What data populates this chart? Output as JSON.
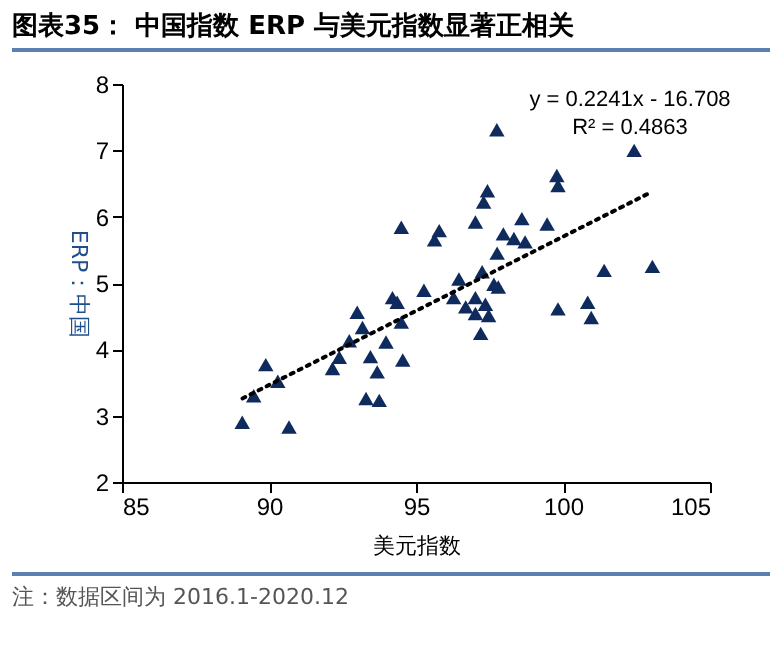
{
  "chart_data": {
    "type": "scatter",
    "title": "图表35： 中国指数 ERP 与美元指数显著正相关",
    "xlabel": "美元指数",
    "ylabel": "ERP：中国",
    "xlim": [
      85,
      105
    ],
    "xticks": [
      85,
      90,
      95,
      100,
      105
    ],
    "ylim": [
      2,
      8
    ],
    "yticks": [
      2,
      3,
      4,
      5,
      6,
      7,
      8
    ],
    "grid": false,
    "annotations": [
      "y = 0.2241x - 16.708",
      "R² = 0.4863",
      "注：数据区间为 2016.1-2020.12"
    ],
    "series": [
      {
        "type": "scatter",
        "marker": "triangle",
        "color": "#0f2b5e",
        "x": [
          89.09,
          89.48,
          89.89,
          90.3,
          90.68,
          92.16,
          92.39,
          92.73,
          93.0,
          93.18,
          93.3,
          93.45,
          93.68,
          93.75,
          93.98,
          94.2,
          94.36,
          94.5,
          94.55,
          94.5,
          95.27,
          95.63,
          95.79,
          96.28,
          96.46,
          96.69,
          97.02,
          97.02,
          97.2,
          97.25,
          97.36,
          97.47,
          97.02,
          97.3,
          97.43,
          97.75,
          97.65,
          97.8,
          97.76,
          97.97,
          98.33,
          98.6,
          98.71,
          99.46,
          99.79,
          99.83,
          99.83,
          100.84,
          100.96,
          101.4,
          102.42,
          103.04
        ],
        "values": [
          2.9,
          3.3,
          3.77,
          3.52,
          2.83,
          3.71,
          3.88,
          4.13,
          4.56,
          4.33,
          3.26,
          3.89,
          3.66,
          3.23,
          4.11,
          4.78,
          4.71,
          4.41,
          3.84,
          5.84,
          4.89,
          5.65,
          5.79,
          4.78,
          5.06,
          4.64,
          4.78,
          4.54,
          4.24,
          5.17,
          4.68,
          4.51,
          5.92,
          6.22,
          6.39,
          7.31,
          4.98,
          4.94,
          5.45,
          5.74,
          5.67,
          5.97,
          5.62,
          5.89,
          6.62,
          6.47,
          4.61,
          4.71,
          4.48,
          5.19,
          7.0,
          5.25
        ]
      },
      {
        "type": "line",
        "color": "#000000",
        "line_style": "dotted",
        "x": [
          89.1,
          103
        ],
        "values": [
          3.26,
          6.37
        ]
      }
    ]
  }
}
